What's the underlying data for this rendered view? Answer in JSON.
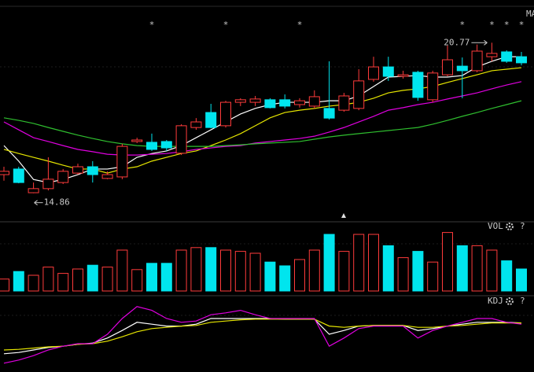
{
  "chart_data": [
    {
      "type": "candlestick",
      "title": "MA",
      "open": [
        15.59,
        15.81,
        14.88,
        15.04,
        15.28,
        15.65,
        15.9,
        15.44,
        15.5,
        16.89,
        16.86,
        16.89,
        16.43,
        17.44,
        18.03,
        17.51,
        18.43,
        18.43,
        18.53,
        18.53,
        18.34,
        18.28,
        18.19,
        18.12,
        18.19,
        19.33,
        19.82,
        19.45,
        19.61,
        18.53,
        19.51,
        19.85,
        19.67,
        20.22,
        20.41,
        20.22
      ],
      "high": [
        15.9,
        15.9,
        15.28,
        16.27,
        15.81,
        16.02,
        16.12,
        15.72,
        16.8,
        17.04,
        17.2,
        16.95,
        17.57,
        17.81,
        18.37,
        18.49,
        18.59,
        18.68,
        18.59,
        18.74,
        18.59,
        18.9,
        20.04,
        18.8,
        19.73,
        20.22,
        20.22,
        19.67,
        19.67,
        19.67,
        20.66,
        20.19,
        20.7,
        20.77,
        20.47,
        20.41
      ],
      "low": [
        15.35,
        15.25,
        14.86,
        14.97,
        15.22,
        15.59,
        15.28,
        15.41,
        15.41,
        16.83,
        16.52,
        16.52,
        16.36,
        17.35,
        17.41,
        17.44,
        18.28,
        18.28,
        18.19,
        18.19,
        18.22,
        18.19,
        17.75,
        18.06,
        18.12,
        19.24,
        19.27,
        19.36,
        18.49,
        18.43,
        19.45,
        18.59,
        19.61,
        20.04,
        19.98,
        19.88
      ],
      "close": [
        15.72,
        15.28,
        15.04,
        15.41,
        15.72,
        15.9,
        15.59,
        15.59,
        16.7,
        16.95,
        16.58,
        16.64,
        17.51,
        17.66,
        17.44,
        18.43,
        18.53,
        18.56,
        18.22,
        18.28,
        18.49,
        18.65,
        17.81,
        18.68,
        19.27,
        19.82,
        19.45,
        19.51,
        18.62,
        19.58,
        20.1,
        19.67,
        20.44,
        20.35,
        20.04,
        19.98
      ],
      "up_color": "#ff3b3b",
      "down_color": "#00e5ee",
      "markers": [
        null,
        null,
        null,
        null,
        null,
        null,
        null,
        null,
        null,
        null,
        "*",
        null,
        null,
        null,
        null,
        "*",
        null,
        null,
        null,
        null,
        "*",
        null,
        null,
        null,
        null,
        null,
        null,
        null,
        null,
        null,
        null,
        "*",
        null,
        "*",
        "*",
        "*"
      ],
      "series": [
        {
          "color": "#ffffff",
          "values": [
            16.73,
            16.12,
            15.4,
            15.28,
            15.4,
            15.59,
            15.81,
            15.81,
            15.9,
            16.27,
            16.42,
            16.52,
            16.73,
            17.04,
            17.35,
            17.66,
            17.97,
            18.19,
            18.34,
            18.43,
            18.43,
            18.43,
            18.49,
            18.49,
            18.68,
            19.05,
            19.42,
            19.45,
            19.48,
            19.42,
            19.42,
            19.48,
            19.82,
            20.04,
            20.22,
            20.22
          ]
        },
        {
          "color": "#e6e600",
          "values": [
            16.58,
            16.42,
            16.27,
            16.12,
            15.96,
            15.81,
            15.81,
            15.65,
            15.81,
            15.9,
            16.12,
            16.27,
            16.42,
            16.52,
            16.73,
            16.95,
            17.2,
            17.51,
            17.82,
            18.03,
            18.12,
            18.19,
            18.28,
            18.34,
            18.43,
            18.59,
            18.8,
            18.9,
            18.96,
            19.05,
            19.21,
            19.36,
            19.51,
            19.67,
            19.73,
            19.79
          ]
        },
        {
          "color": "#e000e0",
          "values": [
            17.66,
            17.35,
            17.04,
            16.89,
            16.73,
            16.58,
            16.49,
            16.39,
            16.36,
            16.36,
            16.39,
            16.42,
            16.49,
            16.58,
            16.64,
            16.7,
            16.73,
            16.83,
            16.89,
            16.95,
            17.01,
            17.1,
            17.26,
            17.44,
            17.66,
            17.88,
            18.12,
            18.22,
            18.34,
            18.43,
            18.56,
            18.68,
            18.8,
            18.96,
            19.11,
            19.24
          ]
        },
        {
          "color": "#2fbf2f",
          "values": [
            17.82,
            17.72,
            17.6,
            17.44,
            17.29,
            17.14,
            17.01,
            16.89,
            16.8,
            16.73,
            16.7,
            16.7,
            16.7,
            16.7,
            16.7,
            16.73,
            16.76,
            16.8,
            16.83,
            16.86,
            16.89,
            16.98,
            17.07,
            17.14,
            17.2,
            17.26,
            17.32,
            17.38,
            17.44,
            17.57,
            17.72,
            17.88,
            18.03,
            18.19,
            18.34,
            18.49
          ]
        }
      ],
      "ylim": [
        13.8,
        22.2
      ]
    },
    {
      "type": "bar",
      "title": "VOL",
      "help": "?",
      "values": [
        19,
        31,
        25,
        38,
        28,
        35,
        41,
        38,
        65,
        34,
        44,
        44,
        65,
        69,
        69,
        65,
        63,
        60,
        46,
        40,
        50,
        65,
        90,
        63,
        90,
        90,
        72,
        53,
        63,
        46,
        93,
        72,
        72,
        65,
        48,
        35
      ],
      "ylim": [
        0,
        100
      ]
    },
    {
      "type": "line",
      "title": "KDJ",
      "help": "?",
      "series": [
        {
          "color": "#ffffff",
          "values": [
            19,
            21,
            25,
            29,
            31,
            34,
            36,
            44,
            56,
            69,
            66,
            63,
            63,
            66,
            75,
            75,
            75,
            75,
            75,
            74,
            74,
            74,
            50,
            56,
            63,
            64,
            64,
            64,
            56,
            59,
            63,
            66,
            69,
            69,
            69,
            68
          ]
        },
        {
          "color": "#e6e600",
          "values": [
            25,
            26,
            28,
            30,
            31,
            34,
            35,
            39,
            46,
            54,
            59,
            61,
            63,
            64,
            69,
            71,
            73,
            74,
            74,
            74,
            74,
            74,
            63,
            61,
            63,
            64,
            64,
            64,
            61,
            61,
            63,
            64,
            66,
            68,
            68,
            68
          ]
        },
        {
          "color": "#e000e0",
          "values": [
            4,
            9,
            16,
            25,
            31,
            35,
            35,
            50,
            75,
            94,
            88,
            75,
            69,
            71,
            81,
            84,
            88,
            81,
            75,
            75,
            75,
            75,
            31,
            44,
            59,
            63,
            63,
            63,
            44,
            56,
            63,
            69,
            75,
            75,
            69,
            66
          ]
        }
      ],
      "ylim": [
        0,
        100
      ]
    }
  ]
}
